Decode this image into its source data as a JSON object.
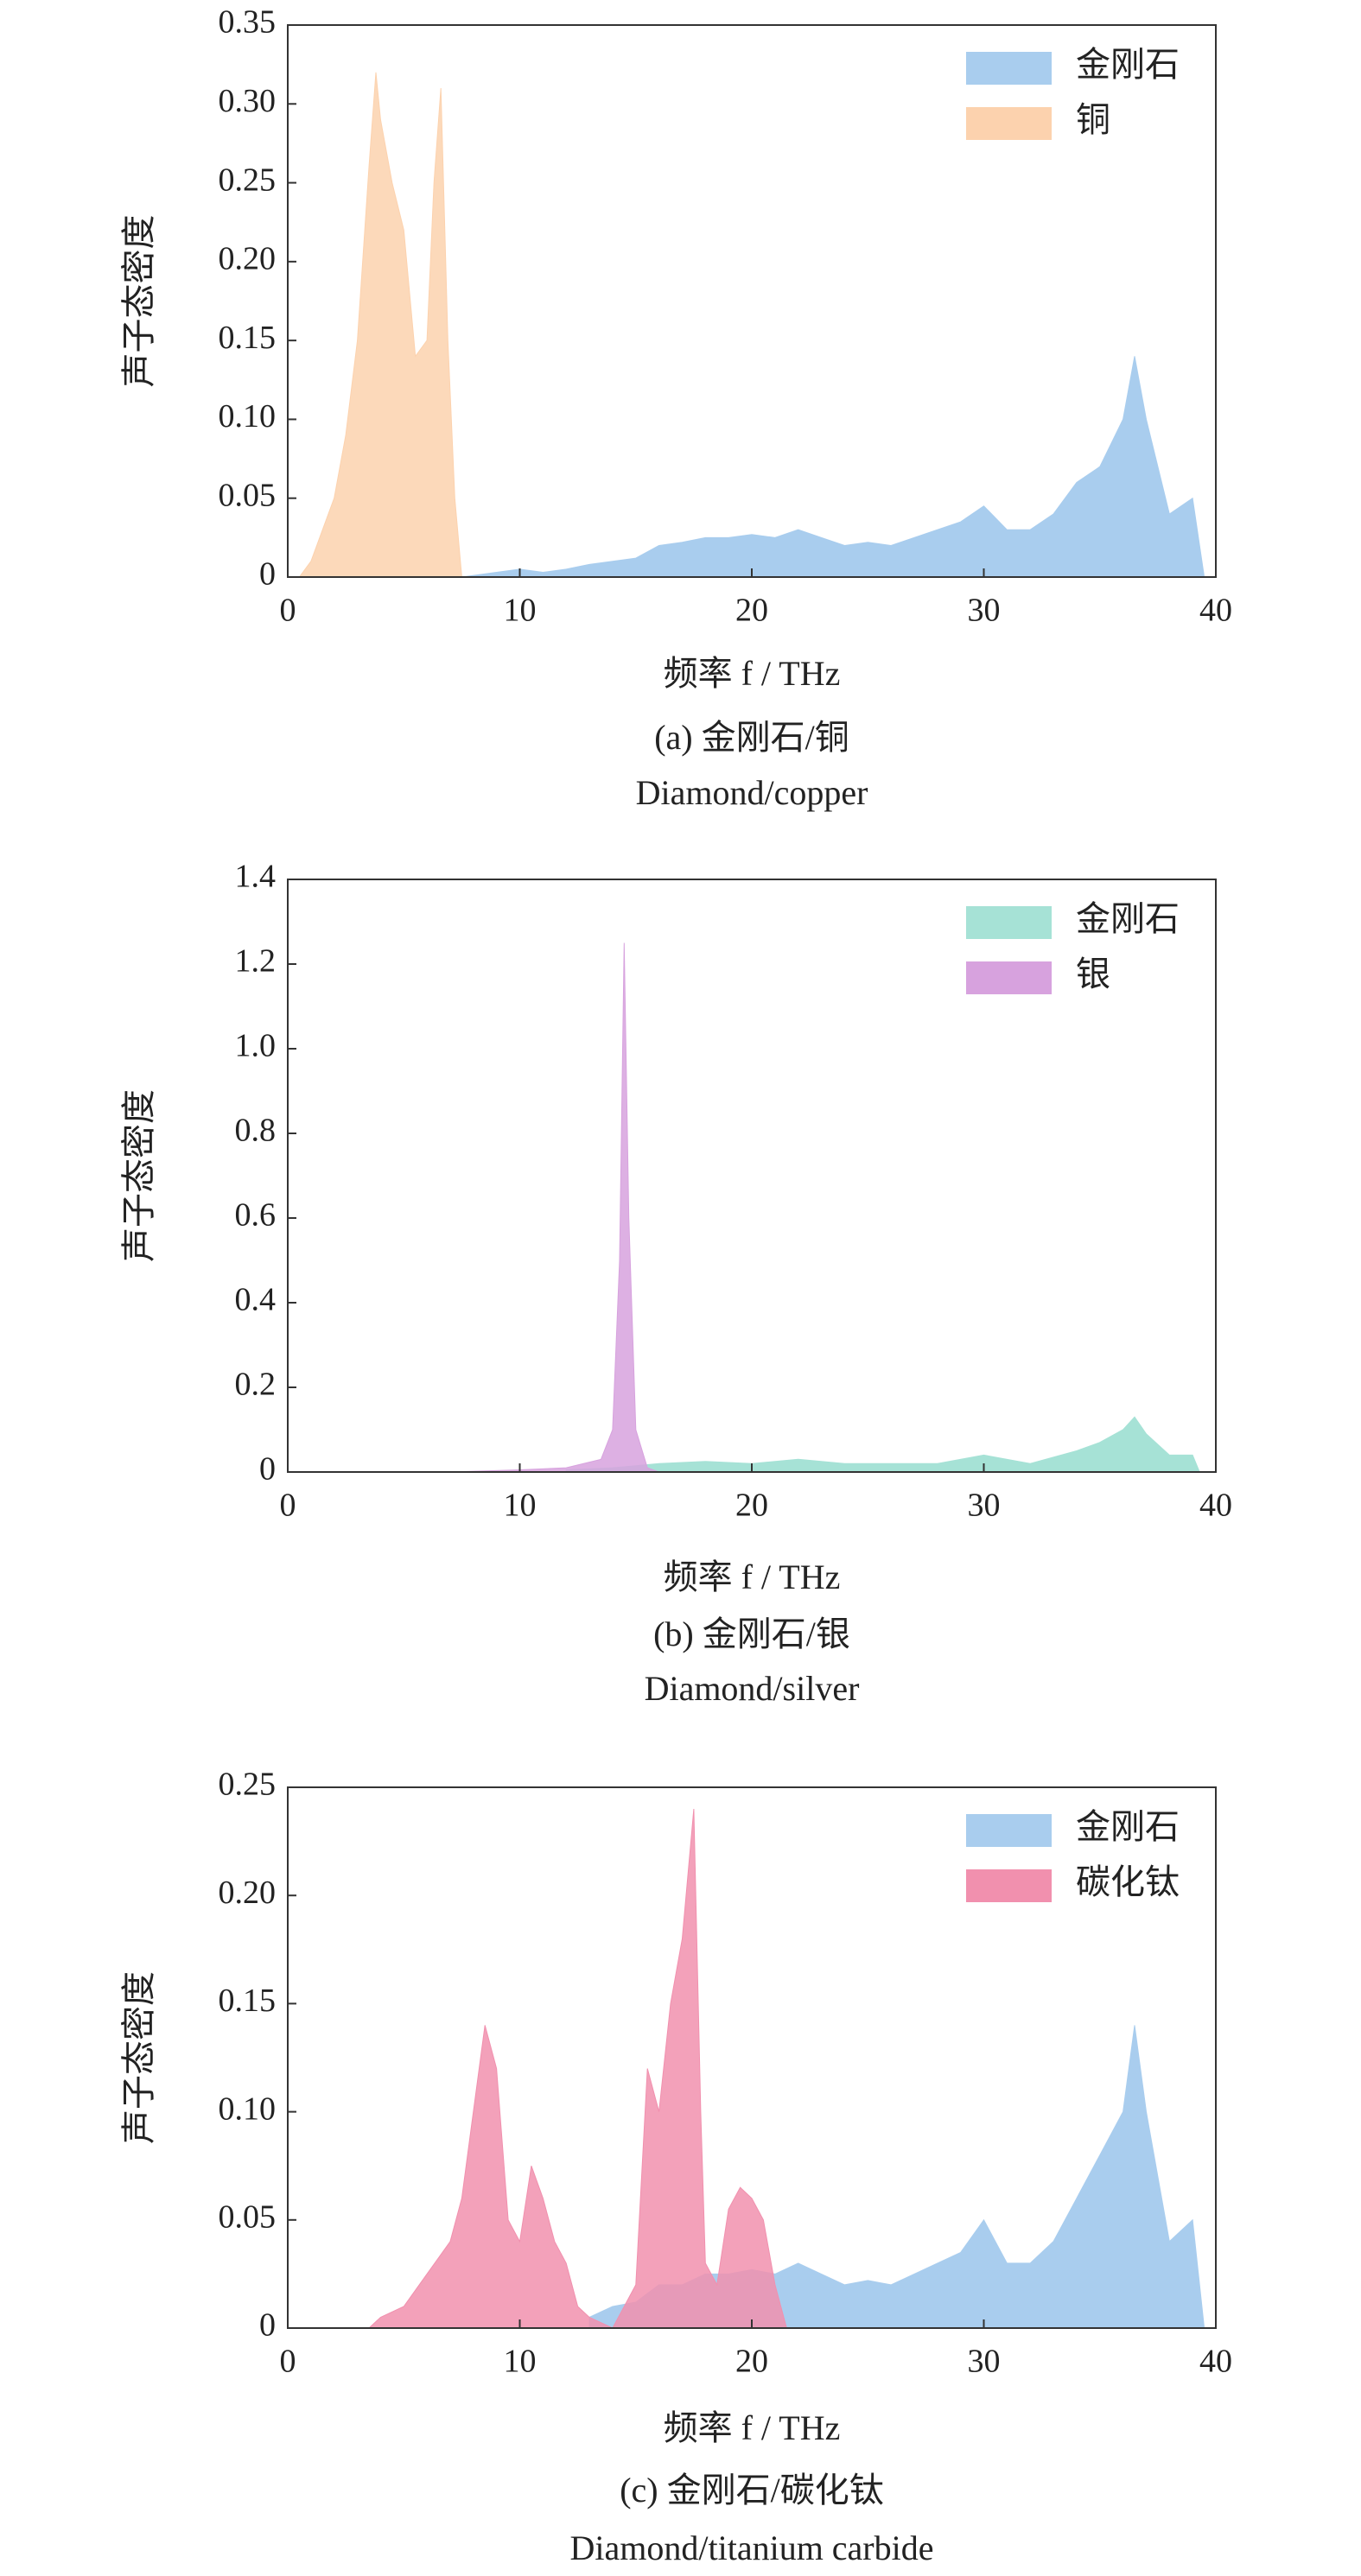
{
  "chart_data": [
    {
      "type": "area",
      "ylabel": "声子态密度",
      "xlabel": "频率 f / THz",
      "caption": "(a) 金刚石/铜",
      "caption_en": "Diamond/copper",
      "xlim": [
        0,
        40
      ],
      "xticks": [
        0,
        10,
        20,
        30,
        40
      ],
      "ylim": [
        0,
        0.35
      ],
      "yticks": [
        0,
        0.05,
        {
          "value": 0.1,
          "label": "0.10"
        },
        0.15,
        {
          "value": 0.2,
          "label": "0.20"
        },
        0.25,
        {
          "value": 0.3,
          "label": "0.30"
        },
        0.35
      ],
      "legend": "upper right",
      "series": [
        {
          "name": "金刚石",
          "color": "#a9cdee",
          "x": [
            7.5,
            9,
            10,
            11,
            12,
            13,
            14,
            15,
            16,
            17,
            18,
            19,
            20,
            21,
            22,
            23,
            24,
            25,
            26,
            27,
            28,
            29,
            30,
            31,
            32,
            33,
            34,
            35,
            36,
            36.5,
            37,
            38,
            39,
            39.5
          ],
          "values": [
            0,
            0.003,
            0.005,
            0.003,
            0.005,
            0.008,
            0.01,
            0.012,
            0.02,
            0.022,
            0.025,
            0.025,
            0.027,
            0.025,
            0.03,
            0.025,
            0.02,
            0.022,
            0.02,
            0.025,
            0.03,
            0.035,
            0.045,
            0.03,
            0.03,
            0.04,
            0.06,
            0.07,
            0.1,
            0.14,
            0.1,
            0.04,
            0.05,
            0
          ]
        },
        {
          "name": "铜",
          "color": "#fcd2ae",
          "x": [
            0.5,
            1,
            1.5,
            2,
            2.5,
            3,
            3.5,
            3.8,
            4,
            4.5,
            5,
            5.5,
            6,
            6.3,
            6.6,
            6.9,
            7.2,
            7.5
          ],
          "values": [
            0,
            0.01,
            0.03,
            0.05,
            0.09,
            0.15,
            0.26,
            0.32,
            0.29,
            0.25,
            0.22,
            0.14,
            0.15,
            0.25,
            0.31,
            0.15,
            0.05,
            0
          ]
        }
      ]
    },
    {
      "type": "area",
      "ylabel": "声子态密度",
      "xlabel": "频率 f / THz",
      "caption": "(b) 金刚石/银",
      "caption_en": "Diamond/silver",
      "xlim": [
        0,
        40
      ],
      "xticks": [
        0,
        10,
        20,
        30,
        40
      ],
      "ylim": [
        0,
        1.4
      ],
      "yticks": [
        0,
        0.2,
        0.4,
        0.6,
        0.8,
        {
          "value": 1,
          "label": "1.0"
        },
        1.2,
        1.4
      ],
      "legend": "upper right",
      "series": [
        {
          "name": "金刚石",
          "color": "#a6e2d6",
          "x": [
            12,
            14,
            15,
            16,
            18,
            20,
            22,
            24,
            26,
            28,
            30,
            32,
            34,
            35,
            36,
            36.5,
            37,
            38,
            39,
            39.3
          ],
          "values": [
            0.005,
            0.01,
            0.015,
            0.02,
            0.025,
            0.02,
            0.03,
            0.02,
            0.02,
            0.02,
            0.04,
            0.02,
            0.05,
            0.07,
            0.1,
            0.13,
            0.09,
            0.04,
            0.04,
            0
          ]
        },
        {
          "name": "银",
          "color": "#d7a2de",
          "x": [
            7,
            10,
            12,
            13.5,
            14,
            14.3,
            14.5,
            14.7,
            15,
            15.5,
            16
          ],
          "values": [
            0,
            0.005,
            0.01,
            0.03,
            0.1,
            0.5,
            1.25,
            0.6,
            0.1,
            0.01,
            0
          ]
        }
      ]
    },
    {
      "type": "area",
      "ylabel": "声子态密度",
      "xlabel": "频率 f / THz",
      "caption": "(c) 金刚石/碳化钛",
      "caption_en": "Diamond/titanium carbide",
      "xlim": [
        0,
        40
      ],
      "xticks": [
        0,
        10,
        20,
        30,
        40
      ],
      "ylim": [
        0,
        0.25
      ],
      "yticks": [
        0,
        0.05,
        {
          "value": 0.1,
          "label": "0.10"
        },
        0.15,
        {
          "value": 0.2,
          "label": "0.20"
        },
        0.25
      ],
      "legend": "upper right",
      "series": [
        {
          "name": "金刚石",
          "color": "#a9cdee",
          "x": [
            13,
            14,
            15,
            16,
            17,
            18,
            19,
            20,
            21,
            22,
            23,
            24,
            25,
            26,
            27,
            28,
            29,
            30,
            31,
            32,
            33,
            34,
            35,
            36,
            36.5,
            37,
            38,
            39,
            39.5
          ],
          "values": [
            0.005,
            0.01,
            0.012,
            0.02,
            0.02,
            0.025,
            0.025,
            0.027,
            0.025,
            0.03,
            0.025,
            0.02,
            0.022,
            0.02,
            0.025,
            0.03,
            0.035,
            0.05,
            0.03,
            0.03,
            0.04,
            0.06,
            0.08,
            0.1,
            0.14,
            0.1,
            0.04,
            0.05,
            0
          ]
        },
        {
          "name": "碳化钛",
          "color": "#f190ae",
          "x": [
            3.5,
            4,
            5,
            6,
            7,
            7.5,
            8,
            8.5,
            9,
            9.5,
            10,
            10.5,
            11,
            11.5,
            12,
            12.5,
            13,
            14,
            15,
            15.5,
            16,
            16.5,
            17,
            17.5,
            17.8,
            18,
            18.5,
            19,
            19.5,
            20,
            20.5,
            21,
            21.5
          ],
          "values": [
            0,
            0.005,
            0.01,
            0.025,
            0.04,
            0.06,
            0.1,
            0.14,
            0.12,
            0.05,
            0.04,
            0.075,
            0.06,
            0.04,
            0.03,
            0.01,
            0.005,
            0,
            0.02,
            0.12,
            0.1,
            0.15,
            0.18,
            0.24,
            0.1,
            0.03,
            0.02,
            0.055,
            0.065,
            0.06,
            0.05,
            0.02,
            0
          ]
        }
      ]
    }
  ]
}
